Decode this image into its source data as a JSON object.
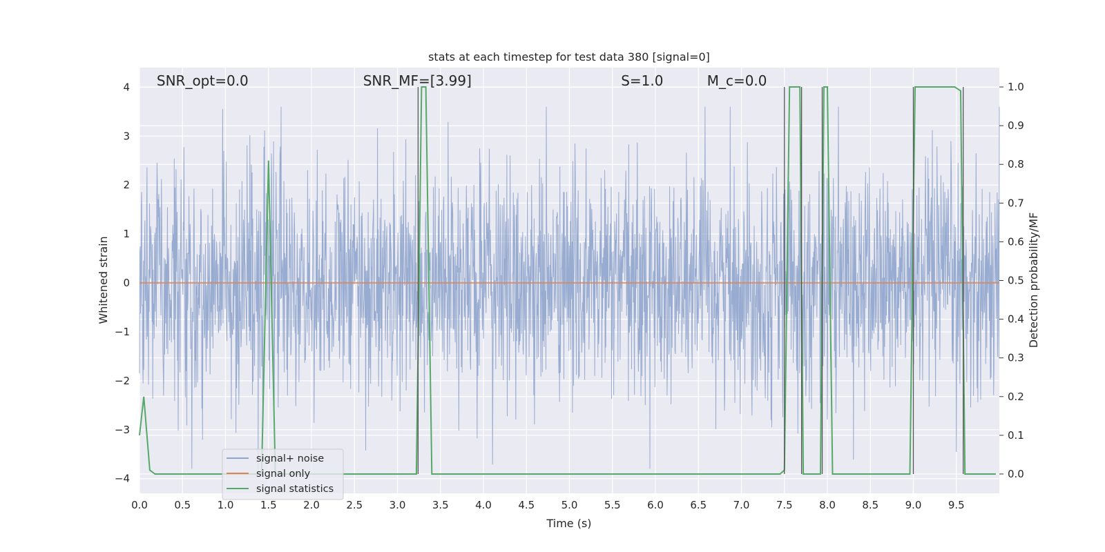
{
  "chart_data": {
    "type": "line",
    "title": "stats at each timestep for test data 380 [signal=0]",
    "xlabel": "Time (s)",
    "ylabel": "Whitened strain",
    "ylabel_right": "Detection probability/MF",
    "xlim": [
      0,
      10
    ],
    "ylim": [
      -4.3,
      4.4
    ],
    "ylim_right": [
      -0.05,
      1.05
    ],
    "x_ticks": [
      0,
      0.5,
      1,
      1.5,
      2,
      2.5,
      3,
      3.5,
      4,
      4.5,
      5,
      5.5,
      6,
      6.5,
      7,
      7.5,
      8,
      8.5,
      9,
      9.5
    ],
    "x_tick_labels": [
      "0.0",
      "0.5",
      "1.0",
      "1.5",
      "2.0",
      "2.5",
      "3.0",
      "3.5",
      "4.0",
      "4.5",
      "5.0",
      "5.5",
      "6.0",
      "6.5",
      "7.0",
      "7.5",
      "8.0",
      "8.5",
      "9.0",
      "9.5"
    ],
    "y_ticks": [
      -4,
      -3,
      -2,
      -1,
      0,
      1,
      2,
      3,
      4
    ],
    "y_tick_labels": [
      "−4",
      "−3",
      "−2",
      "−1",
      "0",
      "1",
      "2",
      "3",
      "4"
    ],
    "y_right_ticks": [
      0,
      0.1,
      0.2,
      0.3,
      0.4,
      0.5,
      0.6,
      0.7,
      0.8,
      0.9,
      1.0
    ],
    "y_right_tick_labels": [
      "0.0",
      "0.1",
      "0.2",
      "0.3",
      "0.4",
      "0.5",
      "0.6",
      "0.7",
      "0.8",
      "0.9",
      "1.0"
    ],
    "grid": true,
    "legend_position": "lower-left",
    "annotations": [
      {
        "text": "SNR_opt=0.0",
        "x": 0.2
      },
      {
        "text": "SNR_MF=[3.99]",
        "x": 2.6
      },
      {
        "text": "S=1.0",
        "x": 5.6
      },
      {
        "text": "M_c=0.0",
        "x": 6.6
      }
    ],
    "series": [
      {
        "name": "signal+ noise",
        "color": "#8fa4cc",
        "kind": "noise",
        "description_values": {
          "amplitude_range": [
            -3.8,
            3.6
          ]
        }
      },
      {
        "name": "signal only",
        "color": "#dd8452",
        "kind": "flat",
        "values_constant": 0
      },
      {
        "name": "signal statistics",
        "color": "#55a868",
        "kind": "step",
        "x": [
          0.0,
          0.05,
          0.12,
          0.18,
          1.42,
          1.5,
          1.58,
          3.22,
          3.28,
          3.33,
          3.4,
          7.45,
          7.5,
          7.56,
          7.68,
          7.72,
          7.92,
          7.96,
          8.0,
          8.06,
          8.96,
          9.02,
          9.48,
          9.55,
          9.6,
          9.96
        ],
        "y": [
          0.1,
          0.2,
          0.01,
          0.0,
          0.0,
          0.81,
          0.0,
          0.0,
          1.0,
          1.0,
          0.0,
          0.0,
          0.01,
          1.0,
          1.0,
          0.0,
          0.0,
          1.0,
          1.0,
          0.0,
          0.0,
          1.0,
          1.0,
          0.99,
          0.0,
          0.0
        ]
      }
    ],
    "vertical_lines": {
      "color": "#555555",
      "x": [
        3.24,
        7.5,
        7.7,
        7.94,
        9.0,
        9.58
      ]
    }
  }
}
